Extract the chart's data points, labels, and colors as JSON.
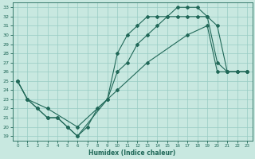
{
  "xlabel": "Humidex (Indice chaleur)",
  "bg_color": "#c8e8e0",
  "grid_color": "#98ccc4",
  "line_color": "#206858",
  "xlim": [
    -0.5,
    23.5
  ],
  "ylim": [
    18.5,
    33.5
  ],
  "xticks": [
    0,
    1,
    2,
    3,
    4,
    5,
    6,
    7,
    8,
    9,
    10,
    11,
    12,
    13,
    14,
    15,
    16,
    17,
    18,
    19,
    20,
    21,
    22,
    23
  ],
  "yticks": [
    19,
    20,
    21,
    22,
    23,
    24,
    25,
    26,
    27,
    28,
    29,
    30,
    31,
    32,
    33
  ],
  "line1_x": [
    0,
    1,
    2,
    3,
    4,
    5,
    6,
    7,
    8,
    9,
    10,
    11,
    12,
    13,
    14,
    15,
    16,
    17,
    18,
    19,
    20,
    21,
    22,
    23
  ],
  "line1_y": [
    25,
    23,
    22,
    21,
    21,
    20,
    19,
    20,
    22,
    23,
    28,
    30,
    31,
    32,
    32,
    32,
    32,
    32,
    32,
    32,
    27,
    26,
    26,
    26
  ],
  "line2_x": [
    0,
    1,
    2,
    3,
    4,
    5,
    6,
    9,
    10,
    11,
    12,
    13,
    14,
    15,
    16,
    17,
    18,
    19,
    20,
    21,
    22,
    23
  ],
  "line2_y": [
    25,
    23,
    22,
    21,
    21,
    20,
    19,
    23,
    26,
    27,
    29,
    30,
    31,
    32,
    33,
    33,
    33,
    32,
    31,
    26,
    26,
    26
  ],
  "line3_x": [
    0,
    1,
    3,
    6,
    10,
    13,
    17,
    19,
    20,
    21,
    22,
    23
  ],
  "line3_y": [
    25,
    23,
    22,
    20,
    24,
    27,
    30,
    31,
    26,
    26,
    26,
    26
  ]
}
